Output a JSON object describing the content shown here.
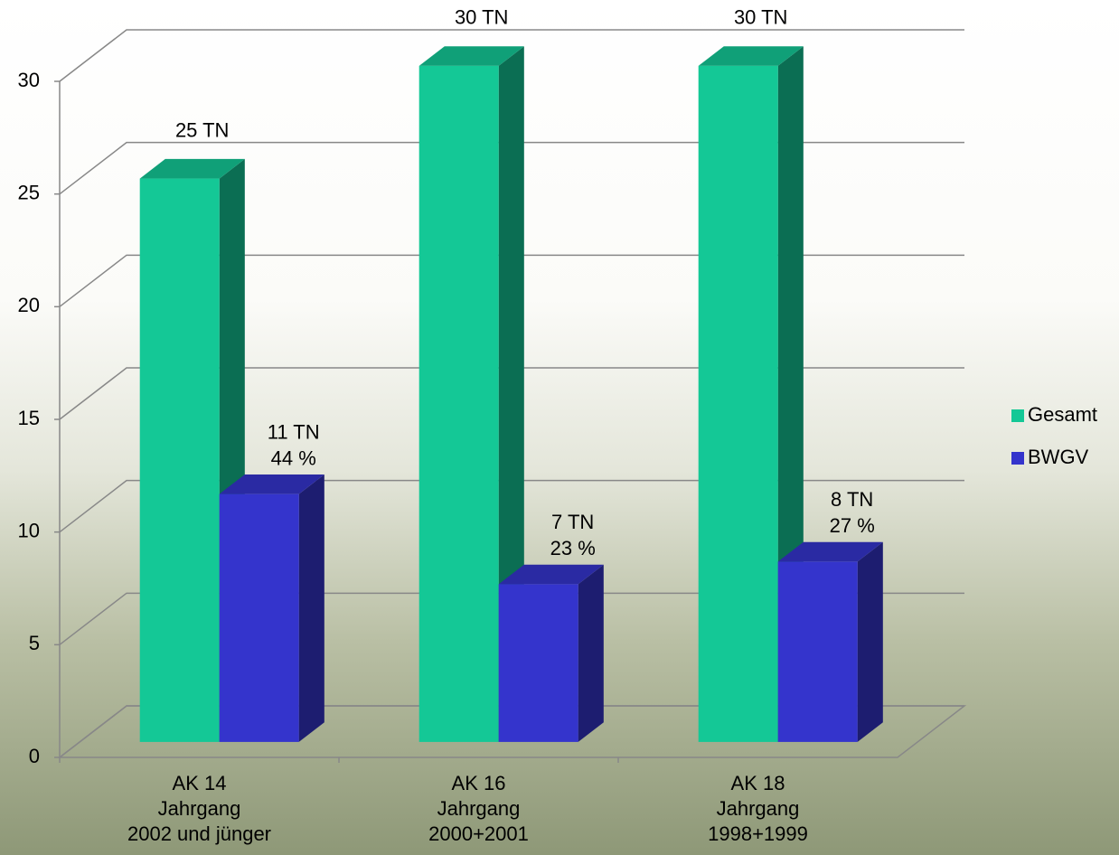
{
  "chart_data": {
    "type": "bar3d",
    "categories": [
      [
        "AK 14",
        "Jahrgang",
        "2002 und jünger"
      ],
      [
        "AK 16",
        "Jahrgang",
        "2000+2001"
      ],
      [
        "AK 18",
        "Jahrgang",
        "1998+1999"
      ]
    ],
    "series": [
      {
        "name": "Gesamt",
        "color": "#14c896",
        "values": [
          25,
          30,
          30
        ],
        "value_labels": [
          "25 TN",
          "30 TN",
          "30 TN"
        ]
      },
      {
        "name": "BWGV",
        "color": "#3434cc",
        "values": [
          11,
          7,
          8
        ],
        "value_labels": [
          "11 TN",
          "7 TN",
          "8 TN"
        ],
        "percent_labels": [
          "44 %",
          "23 %",
          "27 %"
        ]
      }
    ],
    "ylim": [
      0,
      30
    ],
    "yticks": [
      0,
      5,
      10,
      15,
      20,
      25,
      30
    ],
    "grid": true,
    "legend": "right"
  }
}
